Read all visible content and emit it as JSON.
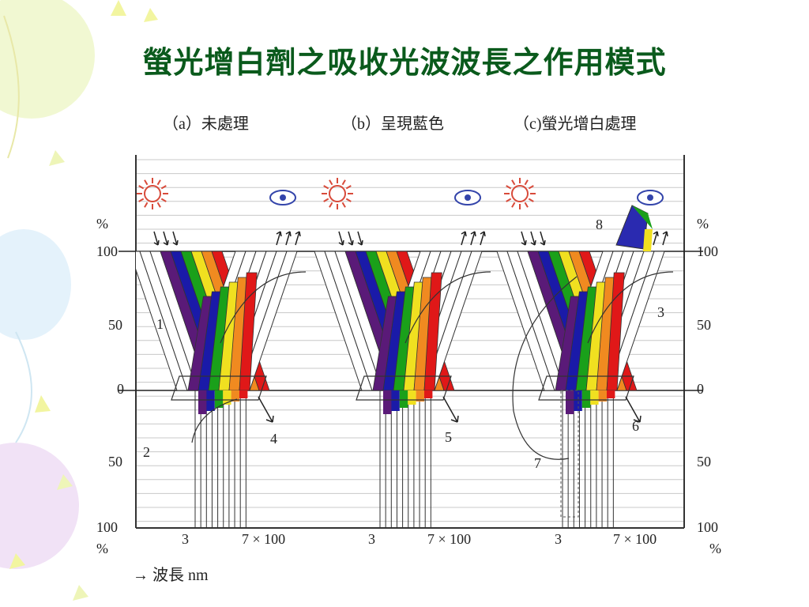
{
  "title": "螢光增白劑之吸收光波波長之作用模式",
  "panels": [
    {
      "label": "（a）未處理"
    },
    {
      "label": "（b）呈現藍色"
    },
    {
      "label": "（c)螢光增白處理"
    }
  ],
  "axis": {
    "left_unit_top": "%",
    "left_ticks": [
      "100",
      "50",
      "0",
      "50",
      "100"
    ],
    "left_unit_bottom": "%",
    "right_unit_top": "%",
    "right_ticks": [
      "100",
      "50",
      "0",
      "50",
      "100"
    ],
    "right_unit_bottom": "%",
    "x_label_start": "3",
    "x_label_end": "7 × 100",
    "wavelength_label": "→ 波長  nm"
  },
  "callouts": [
    "1",
    "2",
    "3",
    "4",
    "5",
    "6",
    "7",
    "8"
  ],
  "spectrum_colors": [
    "#5a1a78",
    "#1a1aa8",
    "#1aa01a",
    "#f0e020",
    "#f08a20",
    "#e01818"
  ],
  "icons": {
    "light_source": "sun-icon",
    "observer": "eye-icon"
  }
}
